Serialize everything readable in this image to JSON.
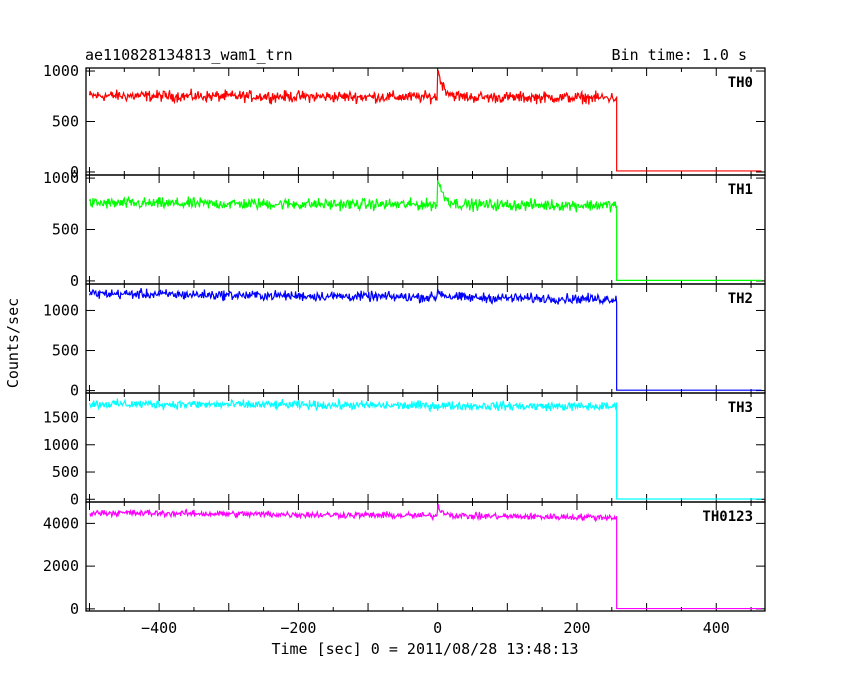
{
  "header": {
    "title": "ae110828134813_wam1_trn",
    "bin_time": "Bin time: 1.0 s"
  },
  "chart_data": {
    "type": "line",
    "ylabel": "Counts/sec",
    "xlabel": "Time [sec] 0 = 2011/08/28 13:48:13",
    "xlim": [
      -505,
      470
    ],
    "x_ticks": [
      -400,
      -200,
      0,
      200,
      400
    ],
    "x_tick_labels": [
      "−400",
      "−200",
      "0",
      "200",
      "400"
    ],
    "x_data_range": [
      -500,
      465
    ],
    "data_end_x": 257,
    "burst_x": 0,
    "grid": false,
    "panels": [
      {
        "name": "TH0",
        "color": "#ff0000",
        "ylim": [
          -30,
          1030
        ],
        "yticks": [
          0,
          500,
          1000
        ],
        "ytick_labels": [
          "0",
          "500",
          "1000"
        ],
        "baseline_start": 755,
        "baseline_end": 735,
        "noise_amplitude": 55,
        "burst_peak": 1020,
        "after_end_value": 10
      },
      {
        "name": "TH1",
        "color": "#00ff00",
        "ylim": [
          -30,
          1030
        ],
        "yticks": [
          0,
          500,
          1000
        ],
        "ytick_labels": [
          "0",
          "500",
          "1000"
        ],
        "baseline_start": 755,
        "baseline_end": 735,
        "noise_amplitude": 55,
        "burst_peak": 1000,
        "after_end_value": 5
      },
      {
        "name": "TH2",
        "color": "#0000ff",
        "ylim": [
          -30,
          1330
        ],
        "yticks": [
          0,
          500,
          1000
        ],
        "ytick_labels": [
          "0",
          "500",
          "1000"
        ],
        "baseline_start": 1210,
        "baseline_end": 1140,
        "noise_amplitude": 60,
        "burst_peak": 1300,
        "after_end_value": 5
      },
      {
        "name": "TH3",
        "color": "#00ffff",
        "ylim": [
          -50,
          1950
        ],
        "yticks": [
          0,
          500,
          1000,
          1500
        ],
        "ytick_labels": [
          "0",
          "500",
          "1000",
          "1500"
        ],
        "baseline_start": 1750,
        "baseline_end": 1700,
        "noise_amplitude": 80,
        "burst_peak": 1750,
        "after_end_value": 5
      },
      {
        "name": "TH0123",
        "color": "#ff00ff",
        "ylim": [
          -100,
          5000
        ],
        "yticks": [
          0,
          2000,
          4000
        ],
        "ytick_labels": [
          "0",
          "2000",
          "4000"
        ],
        "baseline_start": 4500,
        "baseline_end": 4280,
        "noise_amplitude": 150,
        "burst_peak": 4950,
        "after_end_value": 15
      }
    ]
  }
}
